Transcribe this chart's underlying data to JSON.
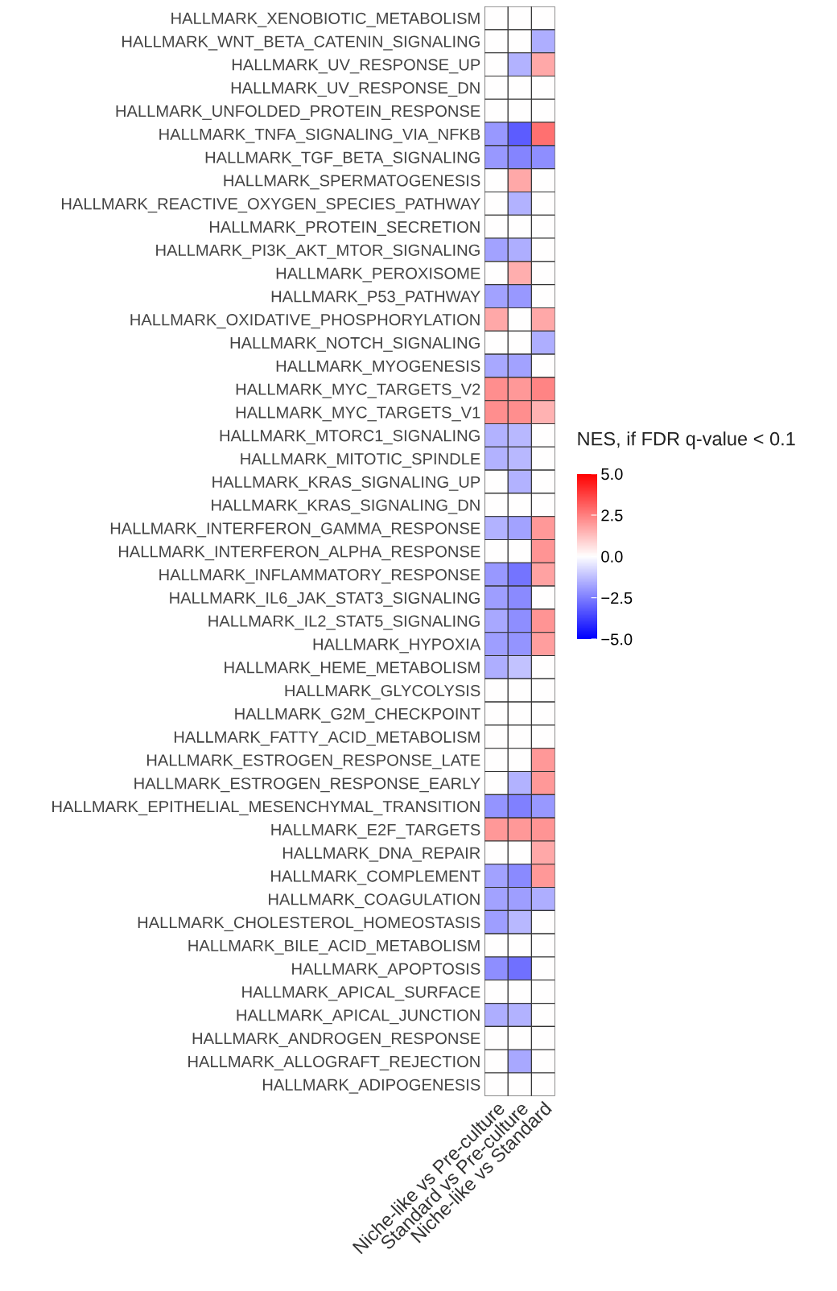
{
  "chart_data": {
    "type": "heatmap",
    "clabel": "NES, if FDR q-value < 0.1",
    "categories": [
      "Niche-like vs Pre-culture",
      "Standard vs Pre-culture",
      "Niche-like vs Standard"
    ],
    "y_categories": [
      "HALLMARK_XENOBIOTIC_METABOLISM",
      "HALLMARK_WNT_BETA_CATENIN_SIGNALING",
      "HALLMARK_UV_RESPONSE_UP",
      "HALLMARK_UV_RESPONSE_DN",
      "HALLMARK_UNFOLDED_PROTEIN_RESPONSE",
      "HALLMARK_TNFA_SIGNALING_VIA_NFKB",
      "HALLMARK_TGF_BETA_SIGNALING",
      "HALLMARK_SPERMATOGENESIS",
      "HALLMARK_REACTIVE_OXYGEN_SPECIES_PATHWAY",
      "HALLMARK_PROTEIN_SECRETION",
      "HALLMARK_PI3K_AKT_MTOR_SIGNALING",
      "HALLMARK_PEROXISOME",
      "HALLMARK_P53_PATHWAY",
      "HALLMARK_OXIDATIVE_PHOSPHORYLATION",
      "HALLMARK_NOTCH_SIGNALING",
      "HALLMARK_MYOGENESIS",
      "HALLMARK_MYC_TARGETS_V2",
      "HALLMARK_MYC_TARGETS_V1",
      "HALLMARK_MTORC1_SIGNALING",
      "HALLMARK_MITOTIC_SPINDLE",
      "HALLMARK_KRAS_SIGNALING_UP",
      "HALLMARK_KRAS_SIGNALING_DN",
      "HALLMARK_INTERFERON_GAMMA_RESPONSE",
      "HALLMARK_INTERFERON_ALPHA_RESPONSE",
      "HALLMARK_INFLAMMATORY_RESPONSE",
      "HALLMARK_IL6_JAK_STAT3_SIGNALING",
      "HALLMARK_IL2_STAT5_SIGNALING",
      "HALLMARK_HYPOXIA",
      "HALLMARK_HEME_METABOLISM",
      "HALLMARK_GLYCOLYSIS",
      "HALLMARK_G2M_CHECKPOINT",
      "HALLMARK_FATTY_ACID_METABOLISM",
      "HALLMARK_ESTROGEN_RESPONSE_LATE",
      "HALLMARK_ESTROGEN_RESPONSE_EARLY",
      "HALLMARK_EPITHELIAL_MESENCHYMAL_TRANSITION",
      "HALLMARK_E2F_TARGETS",
      "HALLMARK_DNA_REPAIR",
      "HALLMARK_COMPLEMENT",
      "HALLMARK_COAGULATION",
      "HALLMARK_CHOLESTEROL_HOMEOSTASIS",
      "HALLMARK_BILE_ACID_METABOLISM",
      "HALLMARK_APOPTOSIS",
      "HALLMARK_APICAL_SURFACE",
      "HALLMARK_APICAL_JUNCTION",
      "HALLMARK_ANDROGEN_RESPONSE",
      "HALLMARK_ALLOGRAFT_REJECTION",
      "HALLMARK_ADIPOGENESIS"
    ],
    "cells": [
      [
        0,
        0,
        0
      ],
      [
        0,
        0,
        -1.6
      ],
      [
        0,
        -1.5,
        1.7
      ],
      [
        0,
        0,
        0
      ],
      [
        0,
        0,
        0
      ],
      [
        -2.0,
        -3.2,
        2.8
      ],
      [
        -2.0,
        -2.4,
        -2.2
      ],
      [
        0,
        1.7,
        0
      ],
      [
        0,
        -1.5,
        0
      ],
      [
        0,
        0,
        0
      ],
      [
        -1.8,
        -1.6,
        0
      ],
      [
        0,
        1.6,
        0
      ],
      [
        -1.8,
        -2.0,
        0
      ],
      [
        1.7,
        0,
        1.7
      ],
      [
        0,
        0,
        -1.6
      ],
      [
        -1.7,
        -1.8,
        0
      ],
      [
        2.2,
        2.0,
        2.4
      ],
      [
        2.2,
        2.2,
        1.5
      ],
      [
        -1.5,
        -1.4,
        0
      ],
      [
        -1.5,
        -1.4,
        0
      ],
      [
        0,
        -1.5,
        0
      ],
      [
        0,
        0,
        0
      ],
      [
        -1.5,
        -1.8,
        2.0
      ],
      [
        0,
        0,
        2.1
      ],
      [
        -2.0,
        -2.7,
        1.8
      ],
      [
        -1.9,
        -2.3,
        0
      ],
      [
        -1.7,
        -2.2,
        2.1
      ],
      [
        -1.9,
        -2.1,
        1.9
      ],
      [
        -1.6,
        -1.2,
        0
      ],
      [
        0,
        0,
        0
      ],
      [
        0,
        0,
        0
      ],
      [
        0,
        0,
        0
      ],
      [
        0,
        0,
        2.0
      ],
      [
        0,
        -1.5,
        2.0
      ],
      [
        -2.1,
        -2.5,
        -2.0
      ],
      [
        2.0,
        2.0,
        2.1
      ],
      [
        0,
        0,
        1.7
      ],
      [
        -1.8,
        -2.3,
        2.0
      ],
      [
        -1.8,
        -1.9,
        -1.6
      ],
      [
        -1.9,
        -1.4,
        0
      ],
      [
        0,
        0,
        0
      ],
      [
        -2.2,
        -2.8,
        0
      ],
      [
        0,
        0,
        0
      ],
      [
        -1.6,
        -1.5,
        0
      ],
      [
        0,
        0,
        0
      ],
      [
        0,
        -1.7,
        0
      ],
      [
        0,
        0,
        0
      ]
    ],
    "clim": [
      -5,
      5
    ],
    "cticks": [
      {
        "value": -5,
        "label": "−5.0"
      },
      {
        "value": -2.5,
        "label": "−2.5"
      },
      {
        "value": 0,
        "label": "0.0"
      },
      {
        "value": 2.5,
        "label": "2.5"
      },
      {
        "value": 5,
        "label": "5.0"
      }
    ]
  }
}
